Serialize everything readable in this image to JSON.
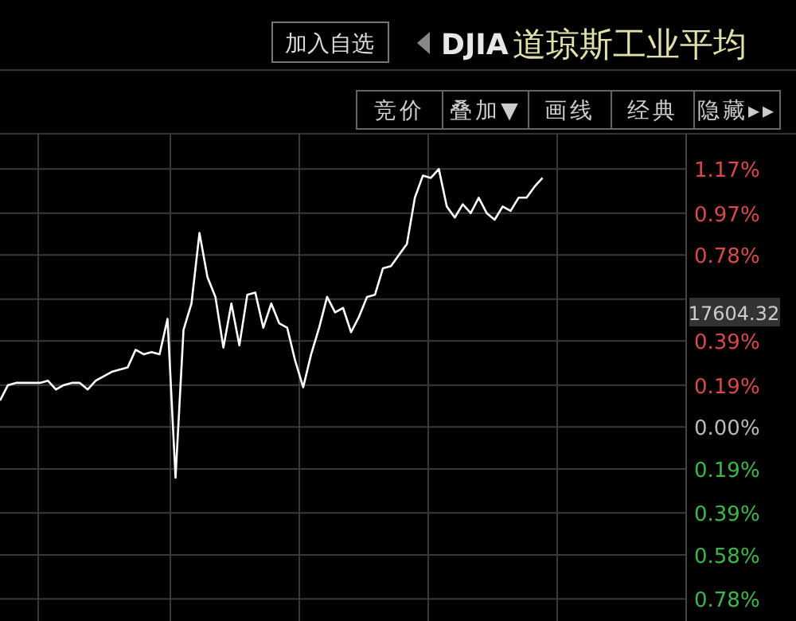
{
  "chart_data": {
    "type": "line",
    "title": "道琼斯工业平均",
    "subtitle": "DJIA",
    "annotations": [
      "加入自选",
      "竞价",
      "叠加▼",
      "画线",
      "经典",
      "隐藏▸▸",
      "17604.32"
    ],
    "categories": [
      null,
      null,
      null,
      null,
      null,
      null,
      null,
      null,
      null,
      null,
      null,
      null,
      null,
      null,
      null,
      null,
      null,
      null,
      null,
      null,
      null,
      null,
      null,
      null,
      null,
      null,
      null,
      null,
      null,
      null,
      null,
      null,
      null,
      null,
      null,
      null,
      null,
      null,
      null,
      null,
      null,
      null,
      null,
      null,
      null,
      null,
      null,
      null,
      null,
      null,
      null,
      null,
      null,
      null,
      null,
      null,
      null,
      null,
      null,
      null,
      null,
      null,
      null,
      null,
      null,
      null,
      null,
      null,
      null,
      null,
      null,
      null,
      null,
      null,
      null,
      null,
      null,
      null,
      null,
      null,
      null,
      null,
      null,
      null,
      null,
      null,
      null
    ],
    "series": [
      {
        "color": "#ffffff",
        "values": [
          0.12,
          0.19,
          0.2,
          0.2,
          0.2,
          0.2,
          0.21,
          0.17,
          0.19,
          0.2,
          0.2,
          0.17,
          0.21,
          0.23,
          0.25,
          0.26,
          0.27,
          0.35,
          0.33,
          0.34,
          0.33,
          0.49,
          -0.23,
          0.44,
          0.56,
          0.88,
          0.68,
          0.59,
          0.36,
          0.56,
          0.37,
          0.6,
          0.61,
          0.45,
          0.56,
          0.47,
          0.45,
          0.3,
          0.18,
          0.33,
          0.45,
          0.59,
          0.52,
          0.54,
          0.43,
          0.5,
          0.59,
          0.6,
          0.72,
          0.73,
          0.78,
          0.83,
          1.04,
          1.14,
          1.13,
          1.17,
          1.0,
          0.95,
          1.01,
          0.97,
          1.04,
          0.97,
          0.94,
          1.0,
          0.98,
          1.04,
          1.04,
          1.09,
          1.13,
          null,
          null,
          null,
          null,
          null,
          null,
          null,
          null,
          null,
          null,
          null,
          null,
          null,
          null,
          null,
          null,
          null,
          null
        ]
      }
    ],
    "ylim": [
      -0.88,
      1.33
    ],
    "yticks": [
      {
        "value": 1.17,
        "label": "1.17%"
      },
      {
        "value": 0.97,
        "label": "0.97%"
      },
      {
        "value": 0.78,
        "label": "0.78%"
      },
      {
        "value": 0.58,
        "label": null
      },
      {
        "value": 0.39,
        "label": "0.39%"
      },
      {
        "value": 0.19,
        "label": "0.19%"
      },
      {
        "value": 0,
        "label": "0.00%"
      },
      {
        "value": -0.19,
        "label": "0.19%"
      },
      {
        "value": -0.39,
        "label": "0.39%"
      },
      {
        "value": -0.58,
        "label": "0.58%"
      },
      {
        "value": -0.78,
        "label": "0.78%"
      }
    ],
    "grid": true,
    "marker": "none",
    "line_style": "solid"
  }
}
